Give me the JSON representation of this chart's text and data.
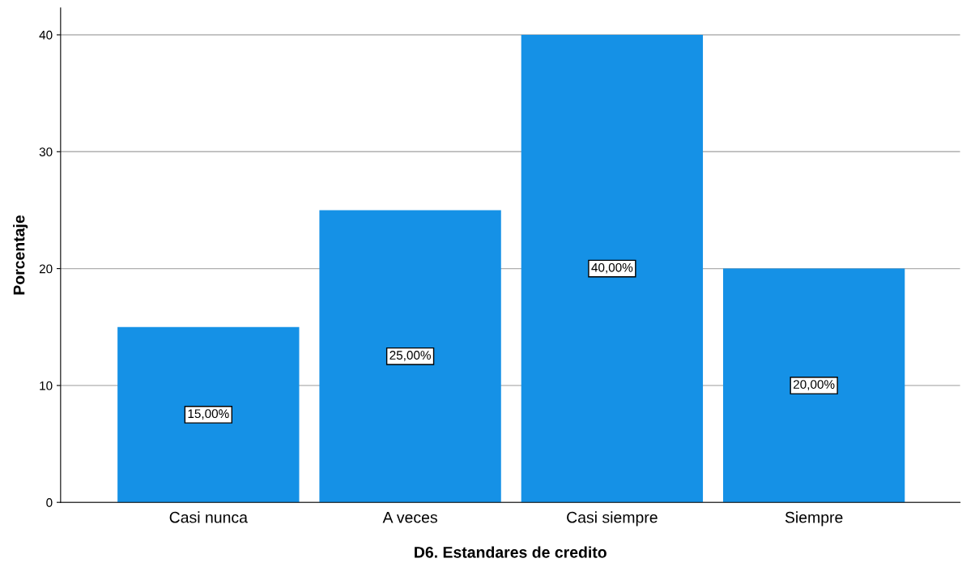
{
  "chart_data": {
    "type": "bar",
    "xlabel": "D6. Estandares de credito",
    "ylabel": "Porcentaje",
    "categories": [
      "Casi nunca",
      "A veces",
      "Casi siempre",
      "Siempre"
    ],
    "values": [
      15,
      25,
      40,
      20
    ],
    "value_labels": [
      "15,00%",
      "25,00%",
      "40,00%",
      "20,00%"
    ],
    "color": "#1591e6",
    "ylim": [
      0,
      42.3
    ],
    "yticks": [
      0,
      10,
      20,
      30,
      40
    ],
    "grid": "y",
    "legend": false
  }
}
